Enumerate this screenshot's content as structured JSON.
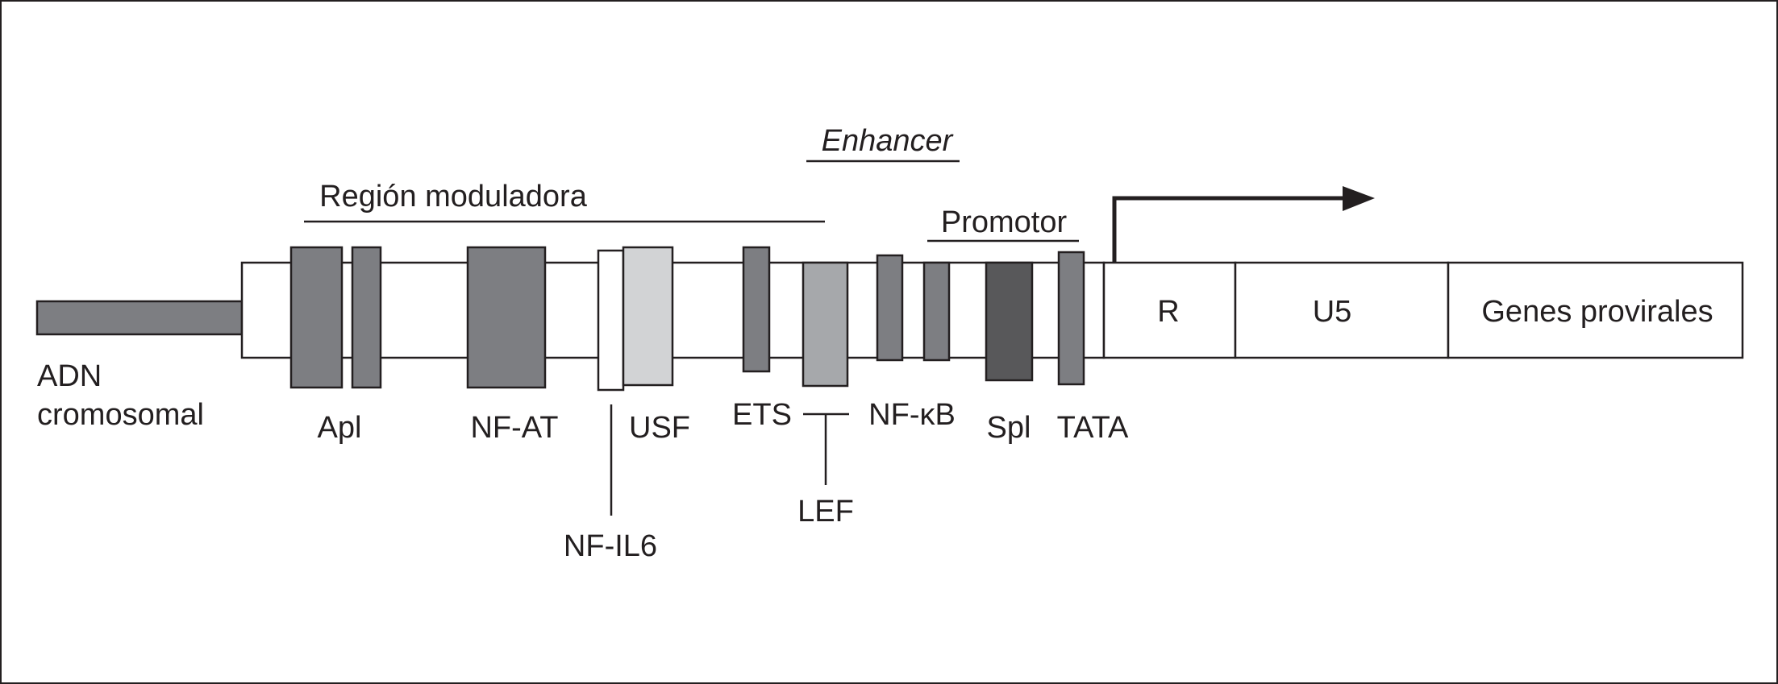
{
  "diagram": {
    "labels": {
      "enhancer": "Enhancer",
      "region_moduladora": "Región moduladora",
      "promotor": "Promotor",
      "adn_line1": "ADN",
      "adn_line2": "cromosomal"
    },
    "ltr_segments": {
      "r": "R",
      "u5": "U5",
      "genes": "Genes provirales"
    },
    "binding_sites": {
      "apl": "Apl",
      "nfat": "NF-AT",
      "nfil6": "NF-IL6",
      "usf": "USF",
      "ets": "ETS",
      "lef": "LEF",
      "nfkb": "NF-κB",
      "spl": "Spl",
      "tata": "TATA"
    },
    "colors": {
      "dark_gray": "#7d7e82",
      "mid_gray": "#a6a8ab",
      "light_gray": "#d2d3d5",
      "very_dark_gray": "#58585a",
      "white": "#ffffff",
      "outline": "#231f20"
    }
  }
}
